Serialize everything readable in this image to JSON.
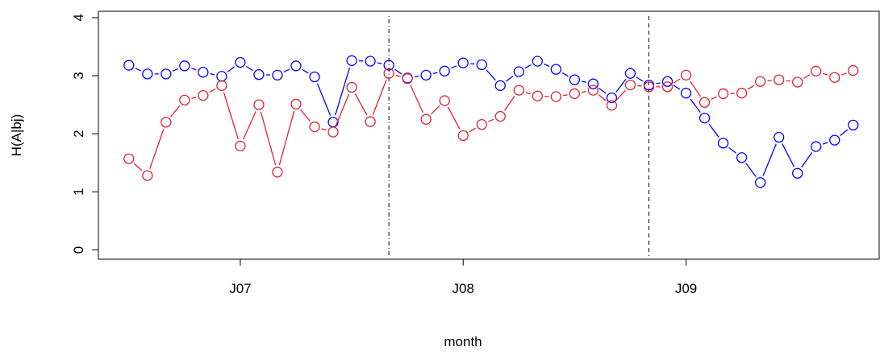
{
  "chart_data": {
    "type": "line",
    "x_label": "month",
    "y_label": "H(A|bj)",
    "x": [
      -6,
      -5,
      -4,
      -3,
      -2,
      -1,
      0,
      1,
      2,
      3,
      4,
      5,
      6,
      7,
      8,
      9,
      10,
      11,
      12,
      13,
      14,
      15,
      16,
      17,
      18,
      19,
      20,
      21,
      22,
      23,
      24,
      25,
      26,
      27,
      28,
      29,
      30,
      31,
      32,
      33
    ],
    "series": [
      {
        "color": "#0000ff",
        "values": [
          3.18,
          3.03,
          3.03,
          3.17,
          3.06,
          2.99,
          3.23,
          3.02,
          3.01,
          3.17,
          2.98,
          2.2,
          3.26,
          3.25,
          3.18,
          2.96,
          3.01,
          3.08,
          3.22,
          3.19,
          2.83,
          3.07,
          3.25,
          3.11,
          2.93,
          2.86,
          2.62,
          3.04,
          2.84,
          2.9,
          2.7,
          2.27,
          1.84,
          1.59,
          1.16,
          1.94,
          1.32,
          1.78,
          1.89,
          2.15
        ]
      },
      {
        "color": "#df2030",
        "values": [
          1.57,
          1.28,
          2.2,
          2.58,
          2.66,
          2.83,
          1.79,
          2.5,
          1.34,
          2.51,
          2.12,
          2.03,
          2.8,
          2.21,
          3.04,
          2.95,
          2.25,
          2.57,
          1.97,
          2.16,
          2.3,
          2.75,
          2.65,
          2.64,
          2.69,
          2.75,
          2.49,
          2.84,
          2.81,
          2.81,
          3.01,
          2.54,
          2.69,
          2.7,
          2.9,
          2.93,
          2.89,
          3.08,
          2.97,
          3.09
        ]
      }
    ],
    "xlim": [
      -7.64,
      34.4
    ],
    "ylim": [
      -0.16,
      4.11
    ],
    "xticks": [
      {
        "value": 0,
        "label": "J07"
      },
      {
        "value": 12,
        "label": "J08"
      },
      {
        "value": 24,
        "label": "J09"
      }
    ],
    "yticks": [
      0,
      1,
      2,
      3,
      4
    ],
    "vlines": [
      {
        "x": 8,
        "style": "dotdash"
      },
      {
        "x": 22,
        "style": "dashed"
      }
    ]
  }
}
